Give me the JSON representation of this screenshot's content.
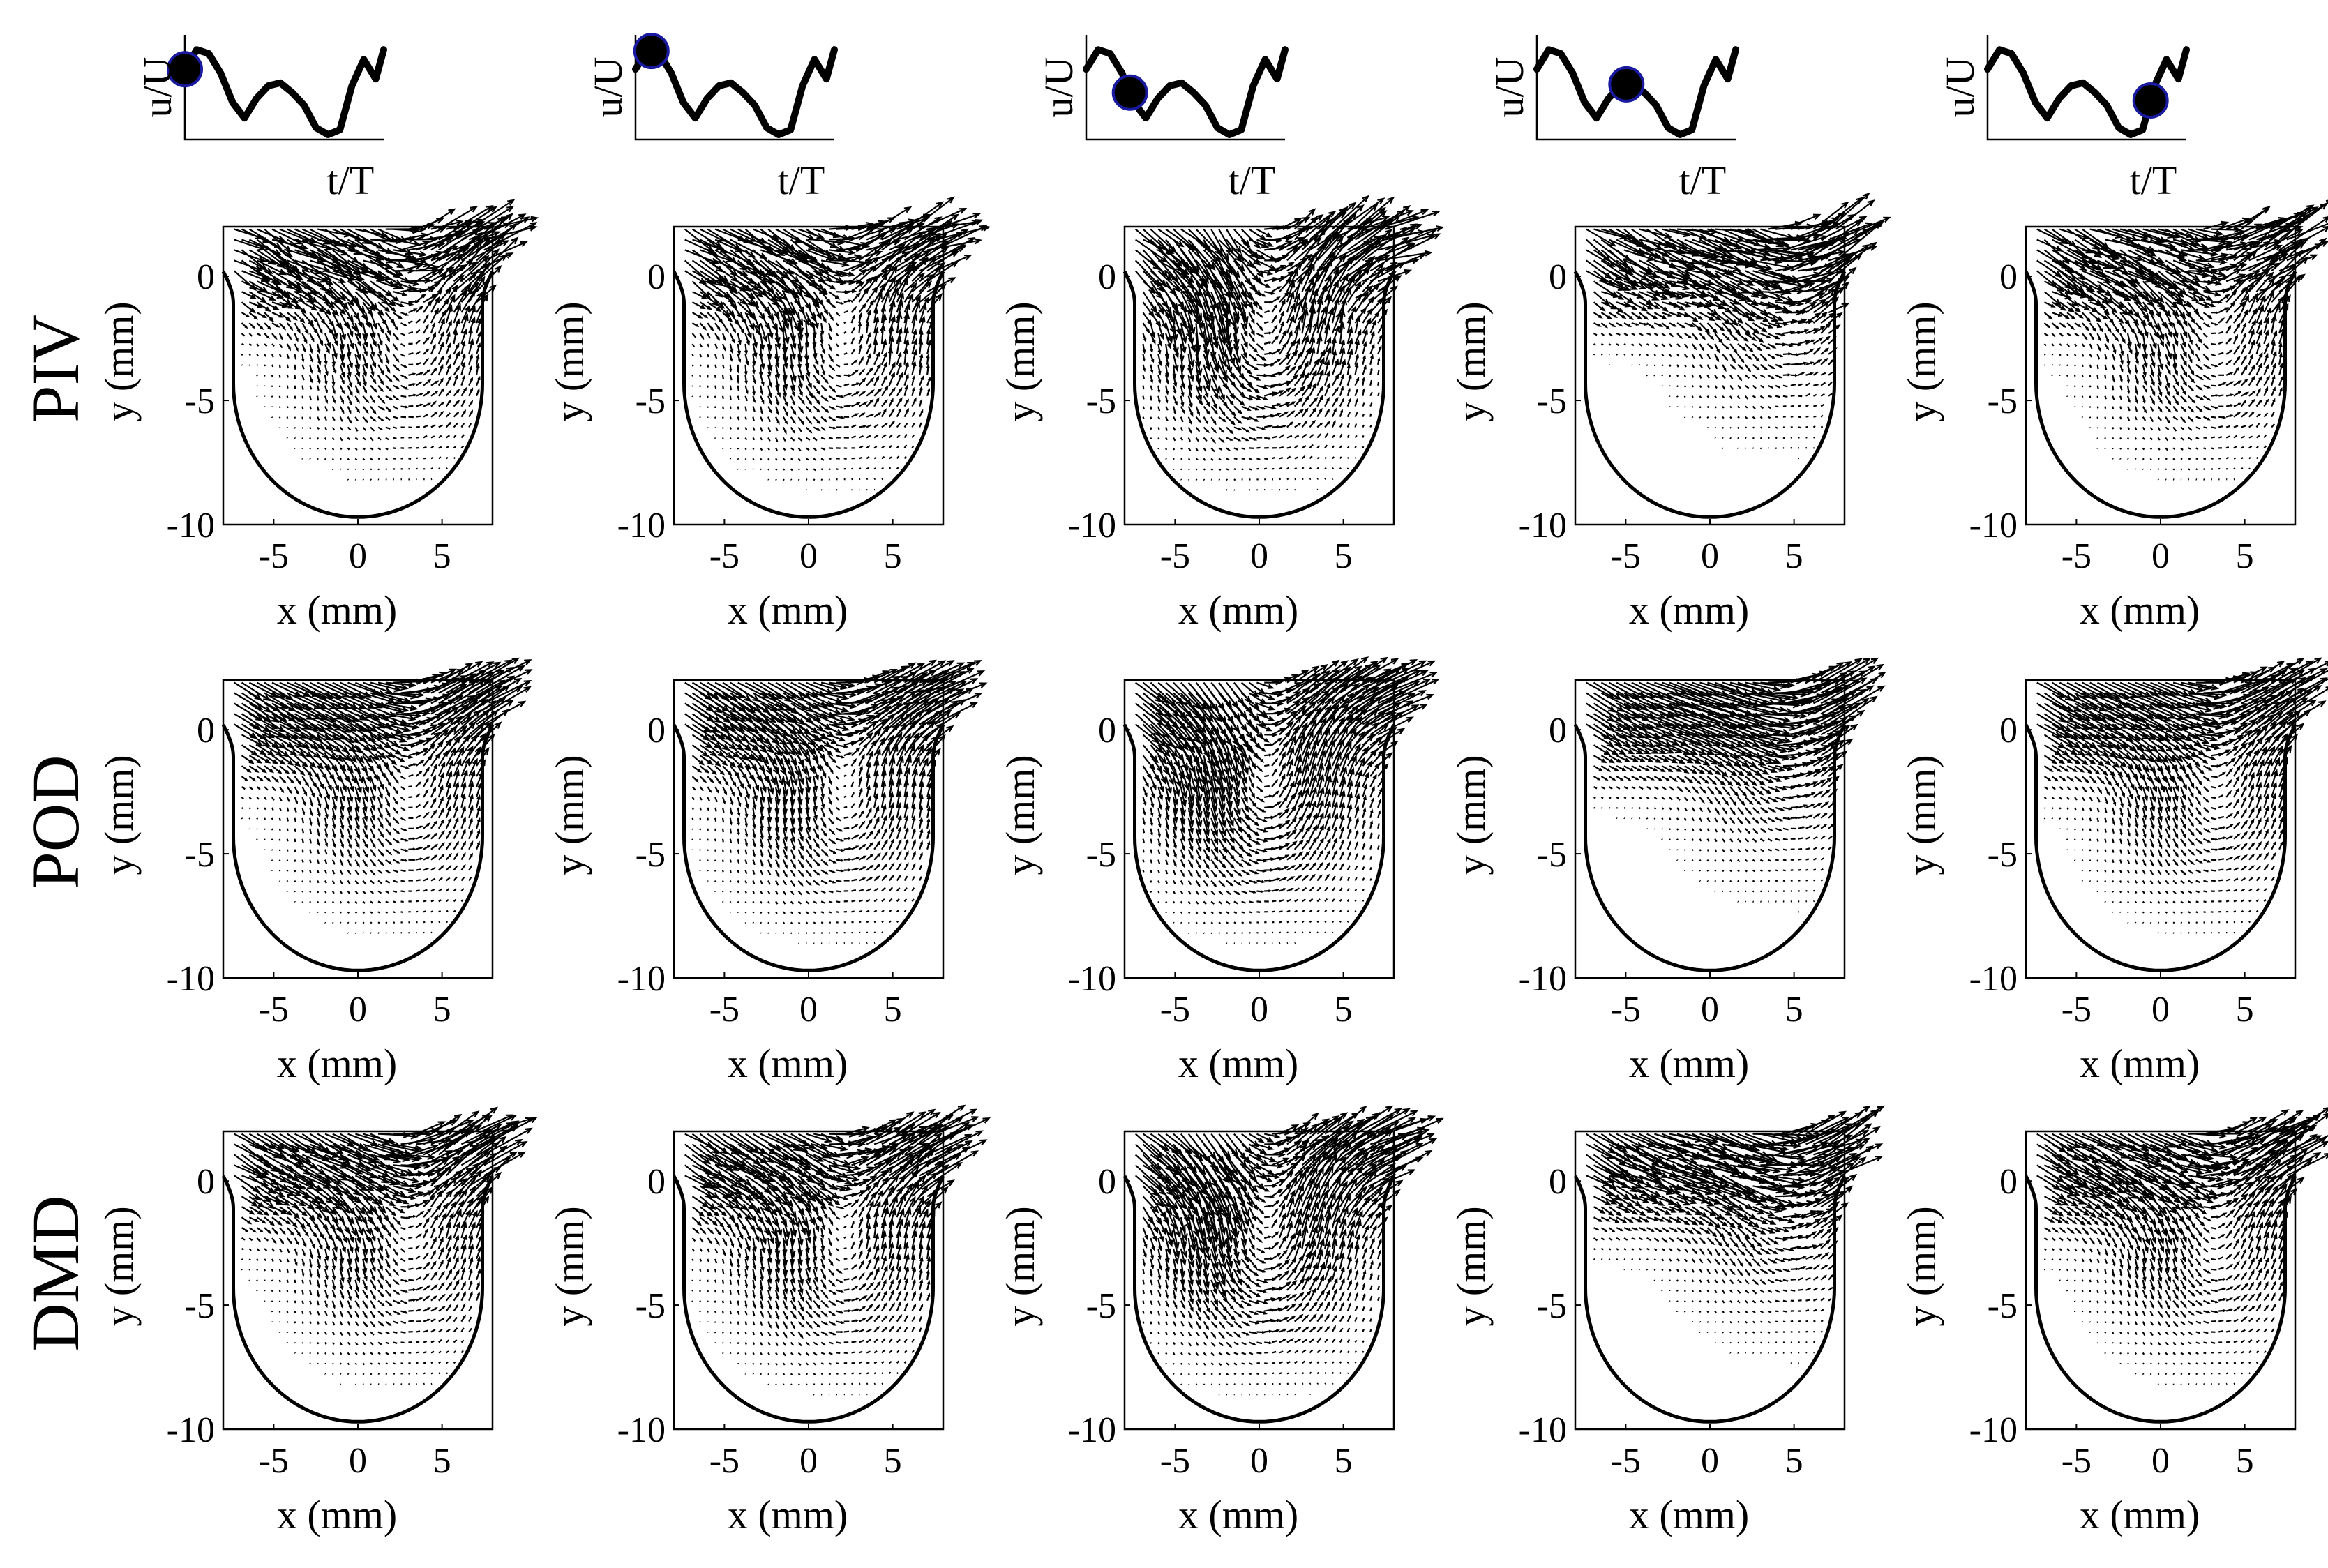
{
  "rows": [
    {
      "label": "PIV"
    },
    {
      "label": "POD"
    },
    {
      "label": "DMD"
    }
  ],
  "columns": [
    {
      "phase": 0.0
    },
    {
      "phase": 0.08
    },
    {
      "phase": 0.22
    },
    {
      "phase": 0.45
    },
    {
      "phase": 0.82
    }
  ],
  "inset": {
    "ylabel": "u/U",
    "xlabel": "t/T",
    "trace_color": "#000000",
    "marker_fill": "#000000",
    "marker_edge": "#1a1aa0"
  },
  "panel": {
    "xlabel": "x (mm)",
    "ylabel": "y (mm)",
    "xticks": [
      {
        "value": -5,
        "label": "-5"
      },
      {
        "value": 0,
        "label": "0"
      },
      {
        "value": 5,
        "label": "5"
      }
    ],
    "yticks": [
      {
        "value": 0,
        "label": "0"
      },
      {
        "value": -5,
        "label": "-5"
      },
      {
        "value": -10,
        "label": "-10"
      }
    ]
  },
  "chart_data": {
    "type": "quiver",
    "xlim": [
      -8,
      8
    ],
    "ylim": [
      -10,
      2
    ],
    "grid": false,
    "legend": "none",
    "waveform_t": [
      0,
      0.06,
      0.12,
      0.18,
      0.24,
      0.3,
      0.36,
      0.42,
      0.48,
      0.54,
      0.6,
      0.66,
      0.72,
      0.78,
      0.84,
      0.9,
      0.96,
      1.0
    ],
    "waveform_u": [
      0.72,
      0.92,
      0.88,
      0.68,
      0.38,
      0.22,
      0.42,
      0.55,
      0.58,
      0.48,
      0.35,
      0.12,
      0.05,
      0.1,
      0.55,
      0.82,
      0.62,
      0.92
    ]
  }
}
